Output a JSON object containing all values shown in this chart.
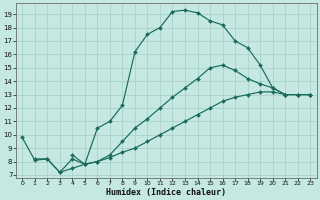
{
  "xlabel": "Humidex (Indice chaleur)",
  "xlim": [
    -0.5,
    23.5
  ],
  "ylim": [
    6.8,
    19.8
  ],
  "yticks": [
    7,
    8,
    9,
    10,
    11,
    12,
    13,
    14,
    15,
    16,
    17,
    18,
    19
  ],
  "xticks": [
    0,
    1,
    2,
    3,
    4,
    5,
    6,
    7,
    8,
    9,
    10,
    11,
    12,
    13,
    14,
    15,
    16,
    17,
    18,
    19,
    20,
    21,
    22,
    23
  ],
  "bg_color": "#c5e8e2",
  "line_color": "#1a6b5a",
  "grid_color": "#a5cfc8",
  "lines": [
    {
      "x": [
        0,
        1,
        2,
        3,
        4,
        5,
        6,
        7,
        8,
        9,
        10,
        11,
        12,
        13,
        14,
        15,
        16,
        17,
        18,
        19,
        20,
        21,
        22,
        23
      ],
      "y": [
        9.8,
        8.1,
        8.2,
        7.2,
        8.2,
        7.8,
        10.5,
        11.0,
        12.2,
        16.2,
        17.5,
        18.0,
        19.2,
        19.3,
        19.1,
        18.5,
        18.2,
        17.0,
        16.5,
        15.2,
        13.5,
        13.0,
        13.0,
        13.0
      ]
    },
    {
      "x": [
        4,
        5,
        6,
        7,
        8,
        9,
        10,
        11,
        12,
        13,
        14,
        15,
        16,
        17,
        18,
        19,
        20,
        21,
        22,
        23
      ],
      "y": [
        8.5,
        7.8,
        8.0,
        8.5,
        9.5,
        10.5,
        11.2,
        12.0,
        12.8,
        13.5,
        14.2,
        15.0,
        15.2,
        14.8,
        14.2,
        13.8,
        13.5,
        13.0,
        13.0,
        13.0
      ]
    },
    {
      "x": [
        1,
        2,
        3,
        4,
        5,
        6,
        7,
        8,
        9,
        10,
        11,
        12,
        13,
        14,
        15,
        16,
        17,
        18,
        19,
        20,
        21,
        22,
        23
      ],
      "y": [
        8.2,
        8.2,
        7.2,
        7.5,
        7.8,
        8.0,
        8.3,
        8.7,
        9.0,
        9.5,
        10.0,
        10.5,
        11.0,
        11.5,
        12.0,
        12.5,
        12.8,
        13.0,
        13.2,
        13.2,
        13.0,
        13.0,
        13.0
      ]
    }
  ]
}
